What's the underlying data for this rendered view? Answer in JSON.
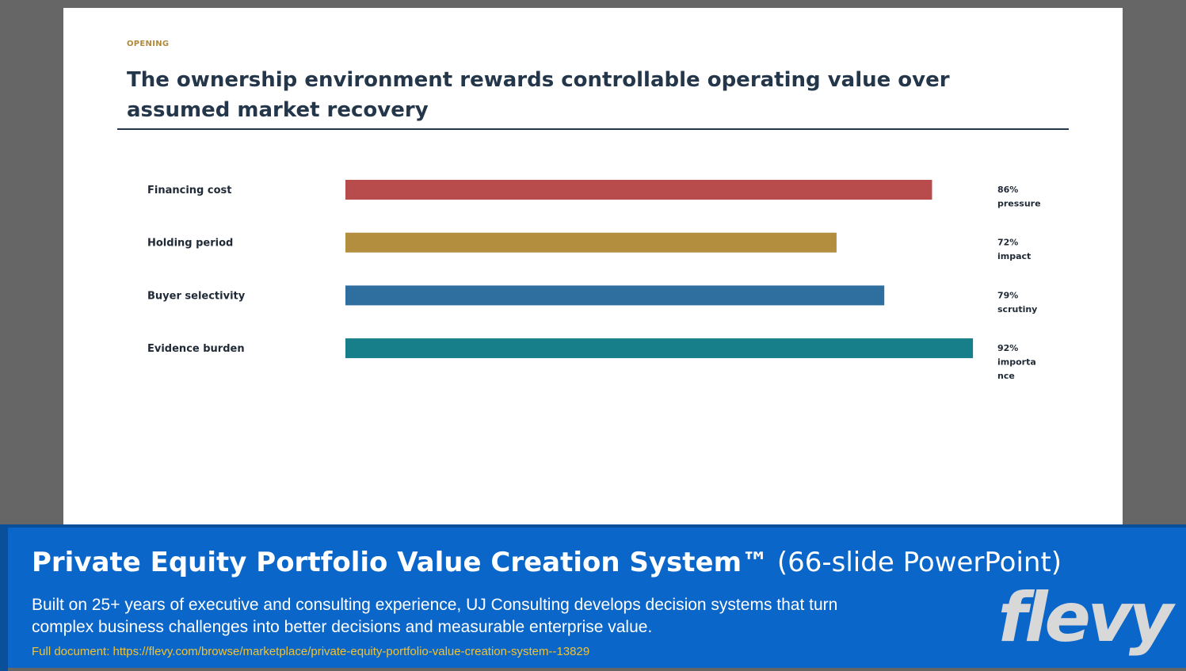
{
  "slide": {
    "kicker": "OPENING",
    "title": "The ownership environment rewards controllable operating value over assumed market recovery"
  },
  "chart_data": {
    "type": "bar",
    "orientation": "horizontal",
    "categories": [
      "Financing cost",
      "Holding period",
      "Buyer selectivity",
      "Evidence burden"
    ],
    "values": [
      86,
      72,
      79,
      92
    ],
    "value_labels": [
      "86% pressure",
      "72% impact",
      "79% scrutiny",
      "92% importance"
    ],
    "colors": [
      "#b84b4b",
      "#b38e3e",
      "#2f6f9f",
      "#177f8a"
    ],
    "xlim": [
      0,
      100
    ],
    "grid": false,
    "legend": "none"
  },
  "banner": {
    "title_bold": "Private Equity Portfolio Value Creation System™",
    "title_rest": " (66-slide PowerPoint)",
    "description": "Built on 25+ years of executive and consulting experience, UJ Consulting develops decision systems that turn complex business challenges into better decisions and measurable enterprise value.",
    "link_text": "Full document: https://flevy.com/browse/marketplace/private-equity-portfolio-value-creation-system--13829",
    "logo": "flevy"
  }
}
